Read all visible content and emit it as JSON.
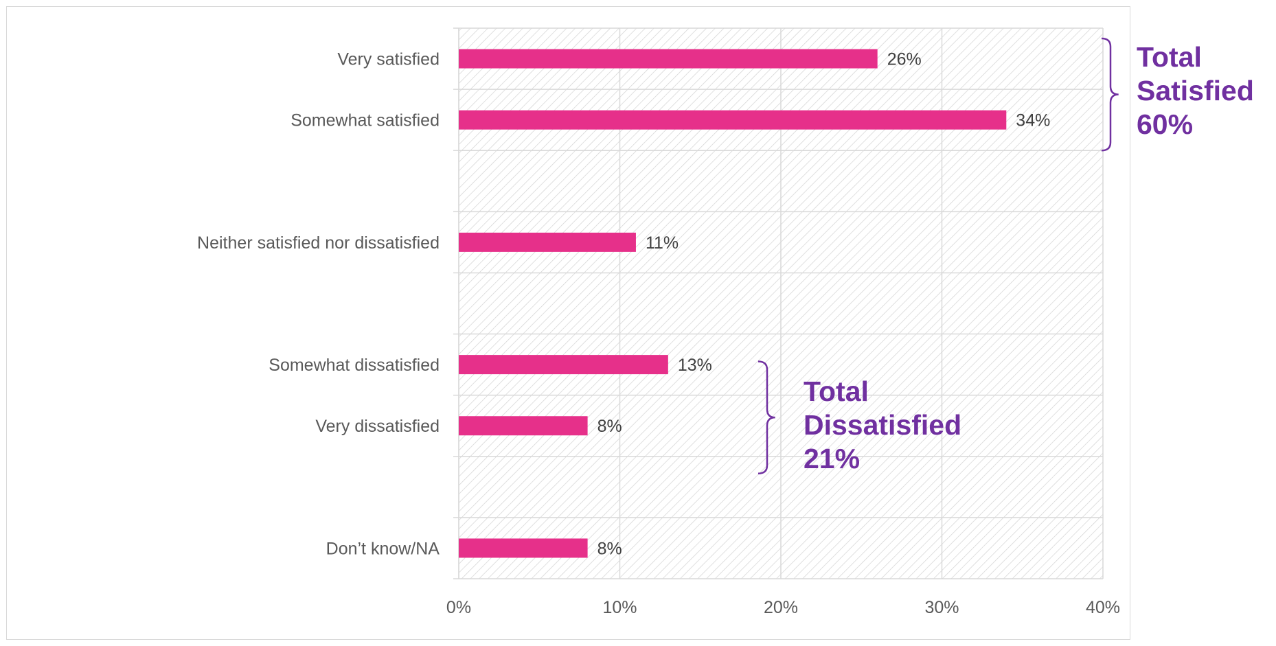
{
  "chart_data": {
    "type": "bar",
    "orientation": "horizontal",
    "categories": [
      "Very satisfied",
      "Somewhat satisfied",
      "",
      "Neither satisfied nor dissatisfied",
      "",
      "Somewhat dissatisfied",
      "Very dissatisfied",
      "",
      "Don’t know/NA"
    ],
    "values": [
      26,
      34,
      null,
      11,
      null,
      13,
      8,
      null,
      8
    ],
    "data_labels": [
      "26%",
      "34%",
      "",
      "11%",
      "",
      "13%",
      "8%",
      "",
      "8%"
    ],
    "xlim": [
      0,
      40
    ],
    "x_ticks": [
      0,
      10,
      20,
      30,
      40
    ],
    "x_tick_labels": [
      "0%",
      "10%",
      "20%",
      "30%",
      "40%"
    ],
    "title": "",
    "xlabel": "",
    "ylabel": "",
    "grid": true,
    "legend": "none",
    "bar_color": "#e6308a",
    "annotation_color": "#7030a0",
    "annotations": [
      {
        "name": "total-satisfied",
        "lines": [
          "Total",
          "Satisfied",
          "60%"
        ],
        "spans": [
          "Very satisfied",
          "Somewhat satisfied"
        ]
      },
      {
        "name": "total-dissatisfied",
        "lines": [
          "Total",
          "Dissatisfied",
          "21%"
        ],
        "spans": [
          "Somewhat dissatisfied",
          "Very dissatisfied"
        ]
      }
    ]
  }
}
